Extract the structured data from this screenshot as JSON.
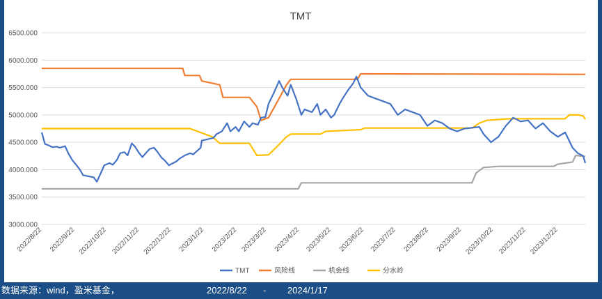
{
  "footer": {
    "source_label": "数据来源：wind，盈米基金，",
    "start_date": "2022/8/22",
    "dash": "-",
    "end_date": "2024/1/17"
  },
  "chart_data": {
    "type": "line",
    "title": "TMT",
    "ylim": [
      3000,
      6500
    ],
    "y_ticks": [
      "6500.000",
      "6000.000",
      "5500.000",
      "5000.000",
      "4500.000",
      "4000.000",
      "3500.000",
      "3000.000"
    ],
    "x_range": [
      "2022/8/22",
      "2024/1/17"
    ],
    "x_ticks": [
      "2022/8/22",
      "2022/9/22",
      "2022/10/22",
      "2022/11/22",
      "2022/12/22",
      "2023/1/22",
      "2023/2/22",
      "2023/3/22",
      "2023/4/22",
      "2023/5/22",
      "2023/6/22",
      "2023/7/22",
      "2023/8/22",
      "2023/9/22",
      "2023/10/22",
      "2023/11/22",
      "2023/12/22"
    ],
    "grid": "horizontal",
    "legend_position": "bottom",
    "series": [
      {
        "name": "TMT",
        "color": "#4472c4",
        "points": [
          [
            "2022/8/22",
            4680
          ],
          [
            "2022/8/25",
            4470
          ],
          [
            "2022/8/29",
            4440
          ],
          [
            "2022/9/1",
            4410
          ],
          [
            "2022/9/5",
            4420
          ],
          [
            "2022/9/8",
            4400
          ],
          [
            "2022/9/13",
            4430
          ],
          [
            "2022/9/16",
            4300
          ],
          [
            "2022/9/20",
            4170
          ],
          [
            "2022/9/23",
            4100
          ],
          [
            "2022/9/27",
            4000
          ],
          [
            "2022/9/30",
            3900
          ],
          [
            "2022/10/10",
            3860
          ],
          [
            "2022/10/13",
            3780
          ],
          [
            "2022/10/17",
            3950
          ],
          [
            "2022/10/20",
            4080
          ],
          [
            "2022/10/25",
            4120
          ],
          [
            "2022/10/28",
            4090
          ],
          [
            "2022/11/1",
            4180
          ],
          [
            "2022/11/4",
            4300
          ],
          [
            "2022/11/8",
            4320
          ],
          [
            "2022/11/11",
            4260
          ],
          [
            "2022/11/15",
            4480
          ],
          [
            "2022/11/18",
            4420
          ],
          [
            "2022/11/22",
            4300
          ],
          [
            "2022/11/25",
            4230
          ],
          [
            "2022/11/29",
            4320
          ],
          [
            "2022/12/2",
            4380
          ],
          [
            "2022/12/6",
            4400
          ],
          [
            "2022/12/9",
            4330
          ],
          [
            "2022/12/13",
            4220
          ],
          [
            "2022/12/16",
            4170
          ],
          [
            "2022/12/20",
            4080
          ],
          [
            "2022/12/23",
            4110
          ],
          [
            "2022/12/27",
            4150
          ],
          [
            "2022/12/30",
            4200
          ],
          [
            "2023/1/4",
            4260
          ],
          [
            "2023/1/9",
            4300
          ],
          [
            "2023/1/12",
            4280
          ],
          [
            "2023/1/16",
            4350
          ],
          [
            "2023/1/19",
            4400
          ],
          [
            "2023/1/20",
            4530
          ],
          [
            "2023/1/31",
            4580
          ],
          [
            "2023/2/3",
            4650
          ],
          [
            "2023/2/8",
            4700
          ],
          [
            "2023/2/13",
            4850
          ],
          [
            "2023/2/16",
            4700
          ],
          [
            "2023/2/21",
            4780
          ],
          [
            "2023/2/24",
            4700
          ],
          [
            "2023/3/1",
            4880
          ],
          [
            "2023/3/6",
            4780
          ],
          [
            "2023/3/9",
            4850
          ],
          [
            "2023/3/14",
            4820
          ],
          [
            "2023/3/17",
            4950
          ],
          [
            "2023/3/21",
            4960
          ],
          [
            "2023/3/24",
            5200
          ],
          [
            "2023/3/29",
            5400
          ],
          [
            "2023/4/3",
            5620
          ],
          [
            "2023/4/6",
            5500
          ],
          [
            "2023/4/11",
            5350
          ],
          [
            "2023/4/14",
            5550
          ],
          [
            "2023/4/19",
            5300
          ],
          [
            "2023/4/24",
            5000
          ],
          [
            "2023/4/27",
            5100
          ],
          [
            "2023/5/4",
            5050
          ],
          [
            "2023/5/9",
            5200
          ],
          [
            "2023/5/12",
            5000
          ],
          [
            "2023/5/17",
            5100
          ],
          [
            "2023/5/22",
            4950
          ],
          [
            "2023/5/25",
            5000
          ],
          [
            "2023/5/30",
            5200
          ],
          [
            "2023/6/2",
            5300
          ],
          [
            "2023/6/7",
            5450
          ],
          [
            "2023/6/12",
            5580
          ],
          [
            "2023/6/15",
            5700
          ],
          [
            "2023/6/19",
            5500
          ],
          [
            "2023/6/26",
            5350
          ],
          [
            "2023/7/3",
            5300
          ],
          [
            "2023/7/10",
            5250
          ],
          [
            "2023/7/17",
            5200
          ],
          [
            "2023/7/24",
            5000
          ],
          [
            "2023/7/31",
            5100
          ],
          [
            "2023/8/7",
            5050
          ],
          [
            "2023/8/14",
            5000
          ],
          [
            "2023/8/21",
            4800
          ],
          [
            "2023/8/28",
            4900
          ],
          [
            "2023/9/4",
            4850
          ],
          [
            "2023/9/11",
            4750
          ],
          [
            "2023/9/18",
            4700
          ],
          [
            "2023/9/25",
            4750
          ],
          [
            "2023/10/9",
            4780
          ],
          [
            "2023/10/13",
            4650
          ],
          [
            "2023/10/20",
            4500
          ],
          [
            "2023/10/27",
            4600
          ],
          [
            "2023/11/3",
            4800
          ],
          [
            "2023/11/10",
            4950
          ],
          [
            "2023/11/17",
            4880
          ],
          [
            "2023/11/24",
            4900
          ],
          [
            "2023/12/1",
            4750
          ],
          [
            "2023/12/8",
            4850
          ],
          [
            "2023/12/15",
            4700
          ],
          [
            "2023/12/22",
            4600
          ],
          [
            "2023/12/29",
            4680
          ],
          [
            "2024/1/5",
            4400
          ],
          [
            "2024/1/10",
            4300
          ],
          [
            "2024/1/15",
            4250
          ],
          [
            "2024/1/17",
            4120
          ]
        ]
      },
      {
        "name": "风险线",
        "color": "#ed7d31",
        "points": [
          [
            "2022/8/22",
            5850
          ],
          [
            "2023/1/2",
            5850
          ],
          [
            "2023/1/4",
            5720
          ],
          [
            "2023/1/18",
            5720
          ],
          [
            "2023/1/20",
            5620
          ],
          [
            "2023/2/6",
            5550
          ],
          [
            "2023/2/9",
            5320
          ],
          [
            "2023/3/6",
            5320
          ],
          [
            "2023/3/13",
            5150
          ],
          [
            "2023/3/17",
            4900
          ],
          [
            "2023/3/24",
            4950
          ],
          [
            "2023/4/3",
            5300
          ],
          [
            "2023/4/10",
            5550
          ],
          [
            "2023/4/14",
            5650
          ],
          [
            "2023/6/16",
            5650
          ],
          [
            "2023/6/19",
            5750
          ],
          [
            "2024/1/17",
            5740
          ]
        ]
      },
      {
        "name": "机会线",
        "color": "#a5a5a5",
        "points": [
          [
            "2022/8/22",
            3650
          ],
          [
            "2023/4/21",
            3650
          ],
          [
            "2023/4/24",
            3760
          ],
          [
            "2023/10/2",
            3760
          ],
          [
            "2023/10/6",
            3940
          ],
          [
            "2023/10/13",
            4040
          ],
          [
            "2023/10/27",
            4060
          ],
          [
            "2023/12/18",
            4060
          ],
          [
            "2023/12/22",
            4100
          ],
          [
            "2024/1/5",
            4140
          ],
          [
            "2024/1/8",
            4260
          ],
          [
            "2024/1/17",
            4240
          ]
        ]
      },
      {
        "name": "分水岭",
        "color": "#ffc000",
        "points": [
          [
            "2022/8/22",
            4750
          ],
          [
            "2023/1/9",
            4750
          ],
          [
            "2023/1/16",
            4700
          ],
          [
            "2023/1/30",
            4600
          ],
          [
            "2023/2/6",
            4480
          ],
          [
            "2023/3/6",
            4480
          ],
          [
            "2023/3/13",
            4260
          ],
          [
            "2023/3/24",
            4270
          ],
          [
            "2023/3/31",
            4400
          ],
          [
            "2023/4/10",
            4600
          ],
          [
            "2023/4/14",
            4650
          ],
          [
            "2023/5/12",
            4650
          ],
          [
            "2023/5/17",
            4700
          ],
          [
            "2023/6/19",
            4730
          ],
          [
            "2023/6/23",
            4760
          ],
          [
            "2023/10/2",
            4760
          ],
          [
            "2023/10/9",
            4850
          ],
          [
            "2023/10/16",
            4900
          ],
          [
            "2023/11/6",
            4930
          ],
          [
            "2023/12/29",
            4930
          ],
          [
            "2024/1/2",
            5000
          ],
          [
            "2024/1/10",
            5000
          ],
          [
            "2024/1/15",
            4980
          ],
          [
            "2024/1/17",
            4920
          ]
        ]
      }
    ]
  }
}
